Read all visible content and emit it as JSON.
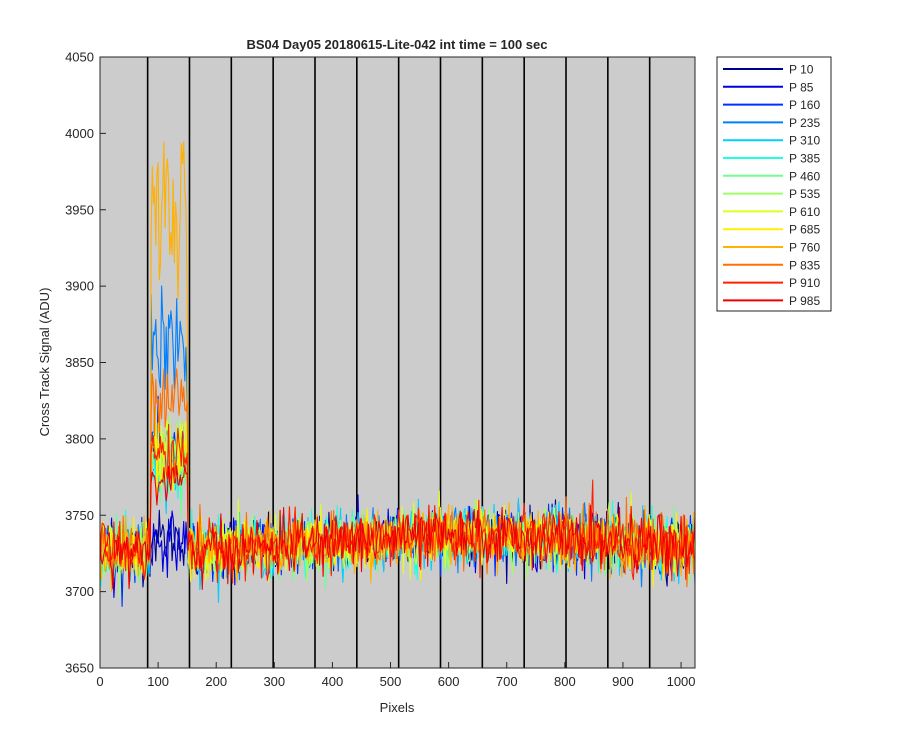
{
  "chart_data": {
    "type": "line",
    "title": "BS04 Day05 20180615-Lite-042 int time = 100 sec",
    "xlabel": "Pixels",
    "ylabel": "Cross Track Signal (ADU)",
    "xlim": [
      0,
      1024
    ],
    "ylim": [
      3650,
      4050
    ],
    "xticks": [
      0,
      100,
      200,
      300,
      400,
      500,
      600,
      700,
      800,
      900,
      1000
    ],
    "yticks": [
      3650,
      3700,
      3750,
      3800,
      3850,
      3900,
      3950,
      4000,
      4050
    ],
    "plot_background": "#cccccc",
    "grid": false,
    "legend_position": "outside-top-right",
    "vertical_lines": {
      "color": "#000000",
      "x": [
        82,
        154,
        226,
        298,
        370,
        442,
        514,
        586,
        658,
        730,
        802,
        874,
        946
      ]
    },
    "signal_model": {
      "baseline_by_x": [
        [
          0,
          3727
        ],
        [
          200,
          3727
        ],
        [
          500,
          3735
        ],
        [
          700,
          3737
        ],
        [
          900,
          3733
        ],
        [
          1024,
          3728
        ]
      ],
      "noise_amplitude_adu": 13,
      "bright_region_x": [
        88,
        150
      ]
    },
    "series": [
      {
        "name": "P 10",
        "color": "#00008f",
        "bright_mean": 3735,
        "bright_noise": 9
      },
      {
        "name": "P 85",
        "color": "#0000df",
        "bright_mean": 3733,
        "bright_noise": 9
      },
      {
        "name": "P 160",
        "color": "#0030ff",
        "bright_mean": 3790,
        "bright_noise": 12
      },
      {
        "name": "P 235",
        "color": "#0080ff",
        "bright_mean": 3860,
        "bright_noise": 18
      },
      {
        "name": "P 310",
        "color": "#00cfff",
        "bright_mean": 3785,
        "bright_noise": 12
      },
      {
        "name": "P 385",
        "color": "#20ffdf",
        "bright_mean": 3775,
        "bright_noise": 10
      },
      {
        "name": "P 460",
        "color": "#70ff8f",
        "bright_mean": 3780,
        "bright_noise": 12
      },
      {
        "name": "P 535",
        "color": "#9fff60",
        "bright_mean": 3795,
        "bright_noise": 13
      },
      {
        "name": "P 610",
        "color": "#dfff20",
        "bright_mean": 3790,
        "bright_noise": 12
      },
      {
        "name": "P 685",
        "color": "#ffef00",
        "bright_mean": 3785,
        "bright_noise": 12
      },
      {
        "name": "P 760",
        "color": "#ffb000",
        "bright_mean": 3950,
        "bright_noise": 30
      },
      {
        "name": "P 835",
        "color": "#ff7000",
        "bright_mean": 3825,
        "bright_noise": 14
      },
      {
        "name": "P 910",
        "color": "#ff2000",
        "bright_mean": 3790,
        "bright_noise": 10
      },
      {
        "name": "P 985",
        "color": "#ef0000",
        "bright_mean": 3772,
        "bright_noise": 8
      }
    ]
  }
}
